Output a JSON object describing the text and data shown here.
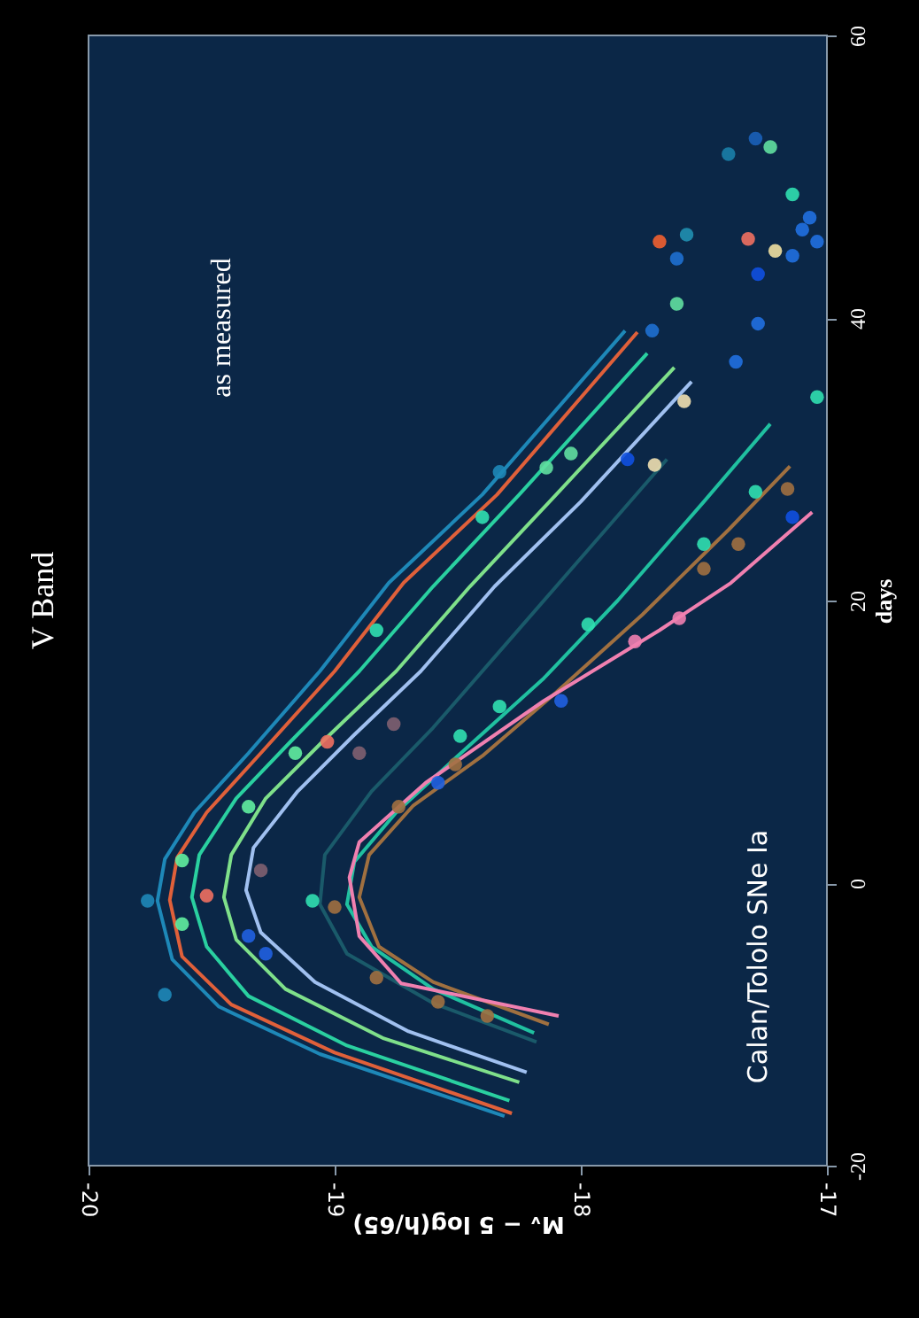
{
  "chart_data": {
    "type": "line",
    "title": "V Band",
    "xlabel": "Mᵥ − 5 log(h/65)",
    "ylabel": "days",
    "annotations": [
      "as measured",
      "Calan/Tololo SNe Ia"
    ],
    "xlim": [
      -20,
      -17
    ],
    "ylim": [
      -20,
      60
    ],
    "xticks": [
      -20,
      -19,
      -18,
      -17
    ],
    "yticks": [
      -20,
      0,
      20,
      40,
      60
    ],
    "series": [
      {
        "color": "#1e88b8",
        "x": [
          -18.31,
          -19.06,
          -19.47,
          -19.66,
          -19.72,
          -19.69,
          -19.57,
          -19.35,
          -19.06,
          -18.78,
          -18.4,
          -17.82
        ],
        "values": [
          -16.5,
          -12.1,
          -8.75,
          -5.4,
          -1.25,
          1.7,
          5,
          9.2,
          15,
          21.25,
          27.5,
          39.1
        ]
      },
      {
        "color": "#e0603a",
        "x": [
          -18.28,
          -19.0,
          -19.42,
          -19.62,
          -19.67,
          -19.64,
          -19.52,
          -19.3,
          -19.0,
          -18.72,
          -18.34,
          -17.77
        ],
        "values": [
          -16.3,
          -12,
          -8.6,
          -5.2,
          -1.2,
          1.8,
          5,
          9.2,
          15,
          21.25,
          27.5,
          39
        ]
      },
      {
        "color": "#2ad0a0",
        "x": [
          -18.29,
          -18.95,
          -19.35,
          -19.52,
          -19.58,
          -19.55,
          -19.4,
          -19.18,
          -18.9,
          -18.6,
          -18.25,
          -17.73
        ],
        "values": [
          -15.4,
          -11.5,
          -8,
          -4.5,
          -1,
          2,
          6,
          10,
          15,
          21,
          27.5,
          37.5
        ]
      },
      {
        "color": "#7fe08a",
        "x": [
          -18.25,
          -18.8,
          -19.2,
          -19.4,
          -19.45,
          -19.42,
          -19.28,
          -19.05,
          -18.75,
          -18.45,
          -18.1,
          -17.62
        ],
        "values": [
          -14.1,
          -11,
          -7.5,
          -4,
          -1,
          2,
          6,
          10,
          15,
          21,
          27.5,
          36.5
        ]
      },
      {
        "color": "#a0c0f0",
        "x": [
          -18.22,
          -18.7,
          -19.08,
          -19.3,
          -19.36,
          -19.33,
          -19.15,
          -18.92,
          -18.65,
          -18.35,
          -18.0,
          -17.55
        ],
        "values": [
          -13.4,
          -10.5,
          -7,
          -3.5,
          -0.5,
          2.5,
          6.5,
          10.5,
          15,
          21,
          27,
          35.5
        ]
      },
      {
        "color": "#1a5a6a",
        "x": [
          -18.18,
          -18.6,
          -18.95,
          -19.06,
          -19.04,
          -18.85,
          -18.6,
          -18.3,
          -17.95,
          -17.65
        ],
        "values": [
          -11.25,
          -8.5,
          -5,
          -1.5,
          2,
          6.5,
          11,
          17,
          24,
          30
        ]
      },
      {
        "color": "#20c0a0",
        "x": [
          -18.19,
          -18.6,
          -18.85,
          -18.95,
          -18.92,
          -18.75,
          -18.5,
          -18.15,
          -17.85,
          -17.5,
          -17.23
        ],
        "values": [
          -10.6,
          -7.5,
          -4.5,
          -1.5,
          1.5,
          5,
          9,
          14.5,
          20,
          27,
          32.5
        ]
      },
      {
        "color": "#a07040",
        "x": [
          -18.13,
          -18.6,
          -18.82,
          -18.9,
          -18.86,
          -18.68,
          -18.4,
          -18.1,
          -17.75,
          -17.4,
          -17.15
        ],
        "values": [
          -10,
          -7,
          -4.5,
          -1,
          2,
          5.5,
          9,
          13.5,
          19,
          25,
          29.5
        ]
      },
      {
        "color": "#f080b0",
        "x": [
          -18.09,
          -18.73,
          -18.9,
          -18.94,
          -18.9,
          -18.63,
          -18.15,
          -17.68,
          -17.39,
          -17.06
        ],
        "values": [
          -9.4,
          -7.1,
          -3.75,
          0.4,
          2.9,
          7.1,
          12.9,
          17.9,
          21.25,
          26.25
        ]
      },
      {
        "type": "scatter",
        "x": [
          -17.68,
          -17.57,
          -17.61,
          -17.61,
          -17.71,
          -17.4,
          -17.29,
          -17.23,
          -17.14,
          -17.07,
          -17.1,
          -17.04,
          -17.32,
          -17.21,
          -17.14,
          -17.28,
          -17.28,
          -17.37,
          -17.04,
          -17.29,
          -17.16,
          -17.5,
          -17.36,
          -17.5,
          -17.14,
          -18.04,
          -18.14,
          -18.4,
          -18.33,
          -17.7,
          -17.58,
          -17.81,
          -19.76,
          -19.69,
          -19.09,
          -19.0,
          -18.58,
          -18.38,
          -18.83,
          -19.28,
          -19.35,
          -19.3,
          -19.62,
          -19.62,
          -19.35,
          -18.83,
          -17.97,
          -18.33,
          -18.49,
          -18.51,
          -18.74,
          -18.58,
          -18.08,
          -17.78,
          -17.6,
          -18.76,
          -18.9,
          -19.03,
          -19.52,
          -19.16
        ],
        "values": [
          45.4,
          45.9,
          44.2,
          41,
          39.1,
          51.6,
          52.7,
          52.1,
          48.75,
          47.1,
          46.25,
          45.4,
          45.6,
          44.75,
          44.4,
          43.1,
          39.6,
          36.9,
          34.4,
          27.7,
          27.9,
          24,
          24,
          22.25,
          25.9,
          30.4,
          29.4,
          25.9,
          29.1,
          29.6,
          34.1,
          30,
          -1.25,
          -7.9,
          -1.25,
          -1.7,
          -8.4,
          -9.4,
          -6.7,
          -5,
          -3.75,
          0.9,
          -2.9,
          1.6,
          5.4,
          17.9,
          18.3,
          12.5,
          10.4,
          8.4,
          5.4,
          7.1,
          12.9,
          17.1,
          18.75,
          11.25,
          9.2,
          10,
          -0.9,
          9.2
        ],
        "colors": [
          "#f06030",
          "#2090b0",
          "#1e70d0",
          "#60e0a0",
          "#1e70d0",
          "#1a80a8",
          "#1a60b8",
          "#60e0a0",
          "#30e0b0",
          "#2070e0",
          "#2070e0",
          "#2070e0",
          "#f07060",
          "#f0e0a0",
          "#2070e0",
          "#1050e0",
          "#2070e0",
          "#2070e0",
          "#30e0b0",
          "#30e0b0",
          "#a07040",
          "#30e0b0",
          "#a07040",
          "#a07040",
          "#1050e0",
          "#60e0a0",
          "#60e0a0",
          "#30e0b0",
          "#1e88b8",
          "#f0e0b0",
          "#f0e0b0",
          "#1050e0",
          "#1e88b8",
          "#1e88b8",
          "#30e0b0",
          "#a07040",
          "#a07040",
          "#a07040",
          "#a07040",
          "#2060e0",
          "#2060e0",
          "#806070",
          "#60f0a0",
          "#60f0a0",
          "#60f0a0",
          "#30e0b0",
          "#30e0b0",
          "#30e0b0",
          "#30e0b0",
          "#a07040",
          "#a07040",
          "#2060e0",
          "#2060e0",
          "#f080b0",
          "#f080b0",
          "#806070",
          "#806070",
          "#f07060",
          "#f07060",
          "#60f0a0"
        ]
      }
    ]
  }
}
